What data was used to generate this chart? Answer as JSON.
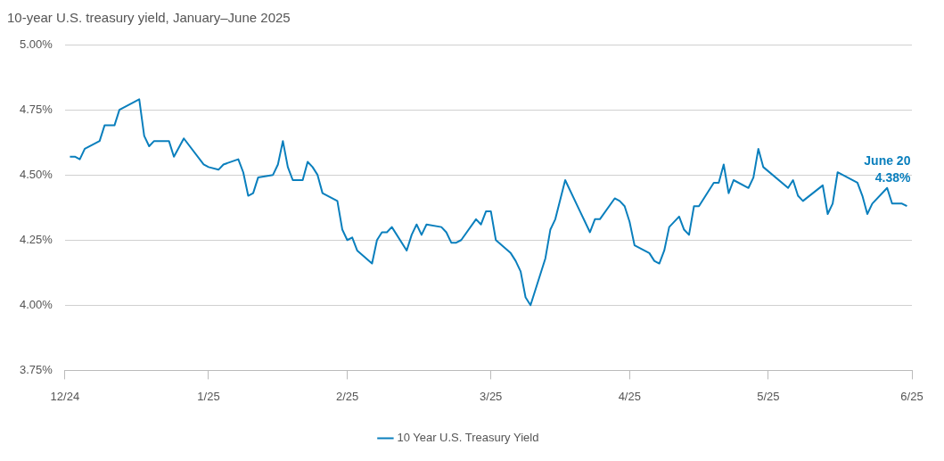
{
  "chart_data": {
    "type": "line",
    "title": "10-year U.S. treasury yield, January–June 2025",
    "x": [
      "2025-01-02",
      "2025-01-03",
      "2025-01-04",
      "2025-01-05",
      "2025-01-08",
      "2025-01-09",
      "2025-01-10",
      "2025-01-11",
      "2025-01-12",
      "2025-01-16",
      "2025-01-17",
      "2025-01-18",
      "2025-01-19",
      "2025-01-22",
      "2025-01-23",
      "2025-01-25",
      "2025-01-29",
      "2025-01-30",
      "2025-02-01",
      "2025-02-02",
      "2025-02-05",
      "2025-02-06",
      "2025-02-07",
      "2025-02-08",
      "2025-02-09",
      "2025-02-12",
      "2025-02-13",
      "2025-02-14",
      "2025-02-15",
      "2025-02-16",
      "2025-02-18",
      "2025-02-19",
      "2025-02-20",
      "2025-02-21",
      "2025-02-22",
      "2025-02-25",
      "2025-02-26",
      "2025-02-27",
      "2025-02-28",
      "2025-03-01",
      "2025-03-04",
      "2025-03-05",
      "2025-03-06",
      "2025-03-07",
      "2025-03-08",
      "2025-03-11",
      "2025-03-12",
      "2025-03-13",
      "2025-03-14",
      "2025-03-15",
      "2025-03-18",
      "2025-03-19",
      "2025-03-20",
      "2025-03-21",
      "2025-03-22",
      "2025-03-25",
      "2025-03-26",
      "2025-03-27",
      "2025-03-28",
      "2025-03-29",
      "2025-04-01",
      "2025-04-02",
      "2025-04-03",
      "2025-04-04",
      "2025-04-05",
      "2025-04-08",
      "2025-04-09",
      "2025-04-10",
      "2025-04-12",
      "2025-04-15",
      "2025-04-16",
      "2025-04-17",
      "2025-04-18",
      "2025-04-19",
      "2025-04-22",
      "2025-04-23",
      "2025-04-24",
      "2025-04-25",
      "2025-04-26",
      "2025-04-29",
      "2025-04-30",
      "2025-05-01",
      "2025-05-02",
      "2025-05-03",
      "2025-05-05",
      "2025-05-06",
      "2025-05-07",
      "2025-05-08",
      "2025-05-09",
      "2025-05-12",
      "2025-05-13",
      "2025-05-14",
      "2025-05-15",
      "2025-05-16",
      "2025-05-19",
      "2025-05-20",
      "2025-05-21",
      "2025-05-22",
      "2025-05-27",
      "2025-05-28",
      "2025-05-29",
      "2025-05-30",
      "2025-06-03",
      "2025-06-04",
      "2025-06-05",
      "2025-06-06",
      "2025-06-10",
      "2025-06-11",
      "2025-06-12",
      "2025-06-13",
      "2025-06-16",
      "2025-06-17",
      "2025-06-19",
      "2025-06-20"
    ],
    "series": [
      {
        "name": "10 Year U.S. Treasury Yield",
        "color": "#0a7fbd",
        "values": [
          4.57,
          4.57,
          4.56,
          4.6,
          4.63,
          4.69,
          4.69,
          4.69,
          4.75,
          4.79,
          4.65,
          4.61,
          4.63,
          4.63,
          4.57,
          4.64,
          4.54,
          4.53,
          4.52,
          4.54,
          4.56,
          4.51,
          4.42,
          4.43,
          4.49,
          4.5,
          4.54,
          4.63,
          4.53,
          4.48,
          4.48,
          4.55,
          4.53,
          4.5,
          4.43,
          4.4,
          4.29,
          4.25,
          4.26,
          4.21,
          4.16,
          4.25,
          4.28,
          4.28,
          4.3,
          4.21,
          4.27,
          4.31,
          4.27,
          4.31,
          4.3,
          4.28,
          4.24,
          4.24,
          4.25,
          4.33,
          4.31,
          4.36,
          4.36,
          4.25,
          4.2,
          4.17,
          4.13,
          4.03,
          4.0,
          4.18,
          4.29,
          4.33,
          4.48,
          4.36,
          4.32,
          4.28,
          4.33,
          4.33,
          4.41,
          4.4,
          4.38,
          4.32,
          4.23,
          4.2,
          4.17,
          4.16,
          4.21,
          4.3,
          4.34,
          4.29,
          4.27,
          4.38,
          4.38,
          4.47,
          4.47,
          4.54,
          4.43,
          4.48,
          4.45,
          4.49,
          4.6,
          4.53,
          4.45,
          4.48,
          4.42,
          4.4,
          4.46,
          4.35,
          4.39,
          4.51,
          4.47,
          4.42,
          4.35,
          4.39,
          4.45,
          4.39,
          4.39,
          4.38
        ]
      }
    ],
    "xlim": [
      "2025-01-01",
      "2025-06-21"
    ],
    "xticks": [
      {
        "value": "2025-01-01",
        "label": "12/24"
      },
      {
        "value": "2025-01-30",
        "label": "1/25"
      },
      {
        "value": "2025-02-27",
        "label": "2/25"
      },
      {
        "value": "2025-03-28",
        "label": "3/25"
      },
      {
        "value": "2025-04-25",
        "label": "4/25"
      },
      {
        "value": "2025-05-23",
        "label": "5/25"
      },
      {
        "value": "2025-06-21",
        "label": "6/25"
      }
    ],
    "ylim": [
      3.75,
      5.0
    ],
    "yticks": [
      {
        "value": 3.75,
        "label": "3.75%"
      },
      {
        "value": 4.0,
        "label": "4.00%"
      },
      {
        "value": 4.25,
        "label": "4.25%"
      },
      {
        "value": 4.5,
        "label": "4.50%"
      },
      {
        "value": 4.75,
        "label": "4.75%"
      },
      {
        "value": 5.0,
        "label": "5.00%"
      }
    ],
    "grid": "y",
    "legend": "bottom",
    "marker": "none",
    "line_style": "solid",
    "annotations": [
      {
        "text": "June 20\n4.38%",
        "x": "2025-06-20",
        "y": 4.38
      }
    ]
  }
}
